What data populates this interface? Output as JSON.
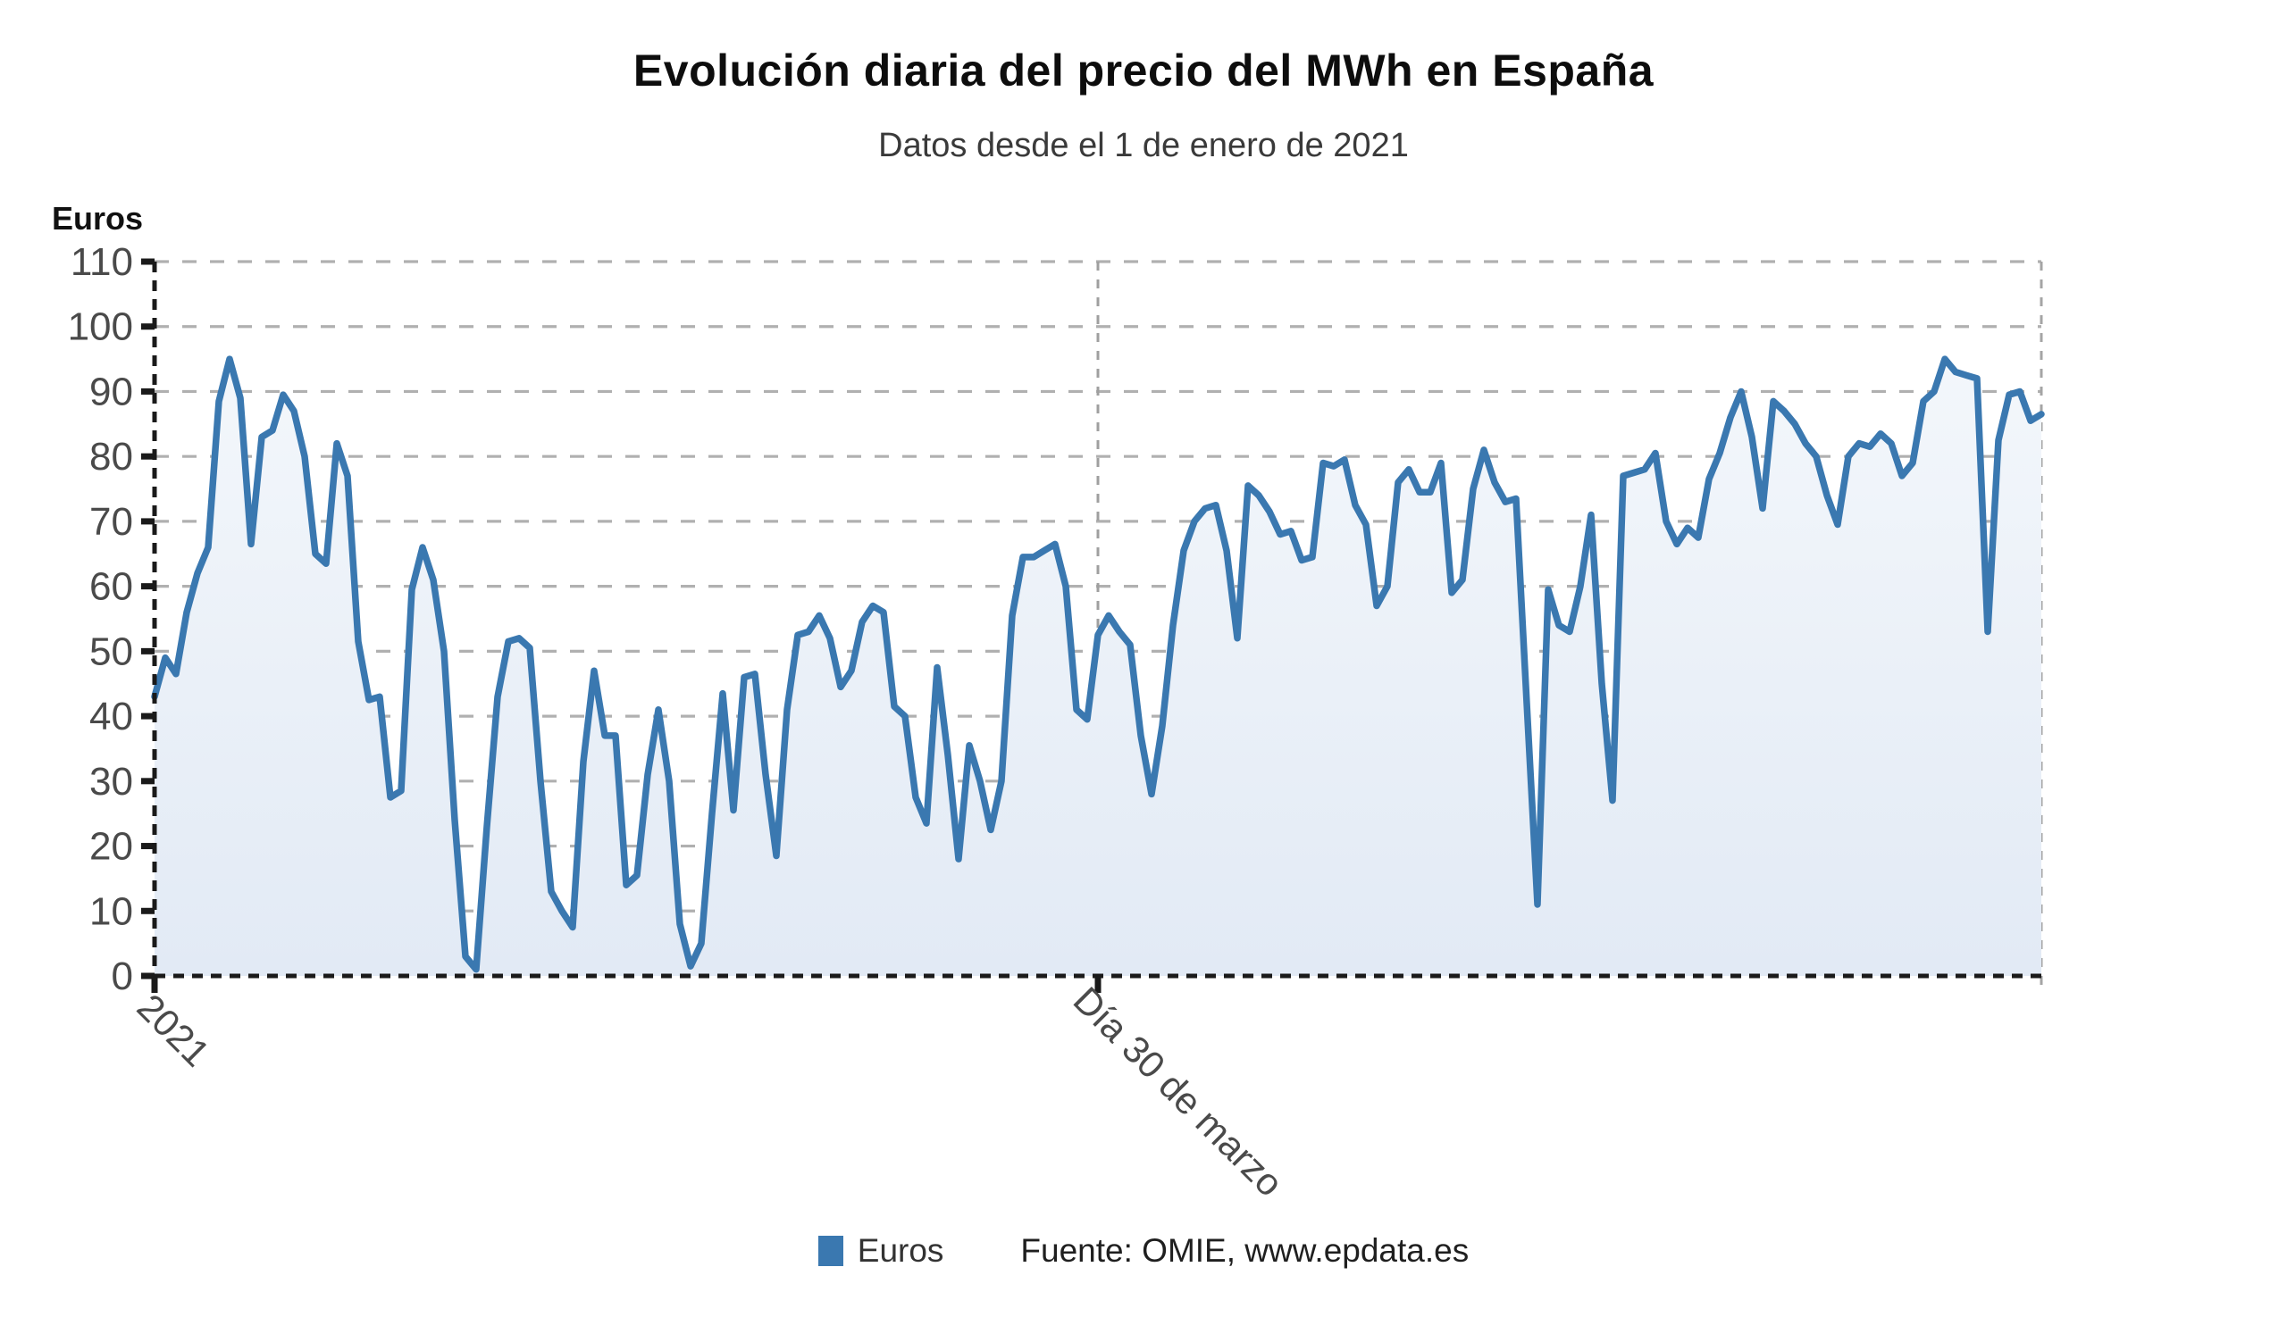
{
  "title": "Evolución diaria del precio del MWh en España",
  "subtitle": "Datos desde el 1 de enero de 2021",
  "y_axis_title": "Euros",
  "legend": {
    "series_label": "Euros",
    "source": "Fuente: OMIE, www.epdata.es"
  },
  "colors": {
    "line": "#3a78b0",
    "legend_square": "#3a78b0",
    "area_top": "#f6f9fc",
    "area_bottom": "#e2eaf5",
    "grid": "#b0b0b0",
    "axis": "#1a1a1a",
    "right_border": "#a5a5a5",
    "marker": "#9f9f9f",
    "tick_text": "#4a4a4a"
  },
  "chart_data": {
    "type": "area",
    "title": "Evolución diaria del precio del MWh en España",
    "subtitle": "Datos desde el 1 de enero de 2021",
    "ylabel": "Euros",
    "ylim": [
      0,
      110
    ],
    "ytick_step": 10,
    "grid": true,
    "legend_position": "bottom-center",
    "x_unit": "días desde el 1 de enero de 2021",
    "x_start_label": "2021",
    "marker": {
      "label": "Día 30 de marzo",
      "index": 88
    },
    "values": [
      43,
      49,
      46.5,
      56,
      62,
      66,
      88.5,
      95,
      89,
      66.5,
      83,
      84,
      89.5,
      87,
      80,
      65,
      63.5,
      82,
      77,
      51.5,
      42.5,
      43,
      27.5,
      28.5,
      59.5,
      66,
      61,
      50,
      24,
      3,
      1,
      23,
      43,
      51.5,
      52,
      50.5,
      30,
      13,
      10,
      7.5,
      33,
      47,
      37,
      37,
      14,
      15.5,
      31,
      41,
      30,
      8,
      1.5,
      5,
      25,
      43.5,
      25.5,
      46,
      46.5,
      31,
      18.5,
      41,
      52.5,
      53,
      55.5,
      52,
      44.5,
      47,
      54.5,
      57,
      56,
      41.5,
      40,
      27.5,
      23.5,
      47.5,
      34,
      18,
      35.5,
      30,
      22.5,
      30,
      55.5,
      64.5,
      64.5,
      65.5,
      66.5,
      60,
      41,
      39.5,
      52.5,
      55.5,
      53,
      51,
      37,
      28,
      38.5,
      54,
      65.5,
      70,
      72,
      72.5,
      65.5,
      52,
      75.5,
      74,
      71.5,
      68,
      68.5,
      64,
      64.5,
      79,
      78.5,
      79.5,
      72.5,
      69.5,
      57,
      60,
      76,
      78,
      74.5,
      74.5,
      79,
      59,
      61,
      75,
      81,
      76,
      73,
      73.5,
      42,
      11,
      59.5,
      54,
      53,
      60,
      71,
      45,
      27,
      77,
      77.5,
      78,
      80.5,
      70,
      66.5,
      69,
      67.5,
      76.5,
      80.5,
      86,
      90,
      83,
      72,
      88.5,
      87,
      85,
      82,
      80,
      74,
      69.5,
      80,
      82,
      81.5,
      83.5,
      82,
      77,
      79,
      88.5,
      90,
      95,
      93,
      92.5,
      92,
      53,
      82.5,
      89.5,
      90,
      85.5,
      86.5
    ]
  }
}
